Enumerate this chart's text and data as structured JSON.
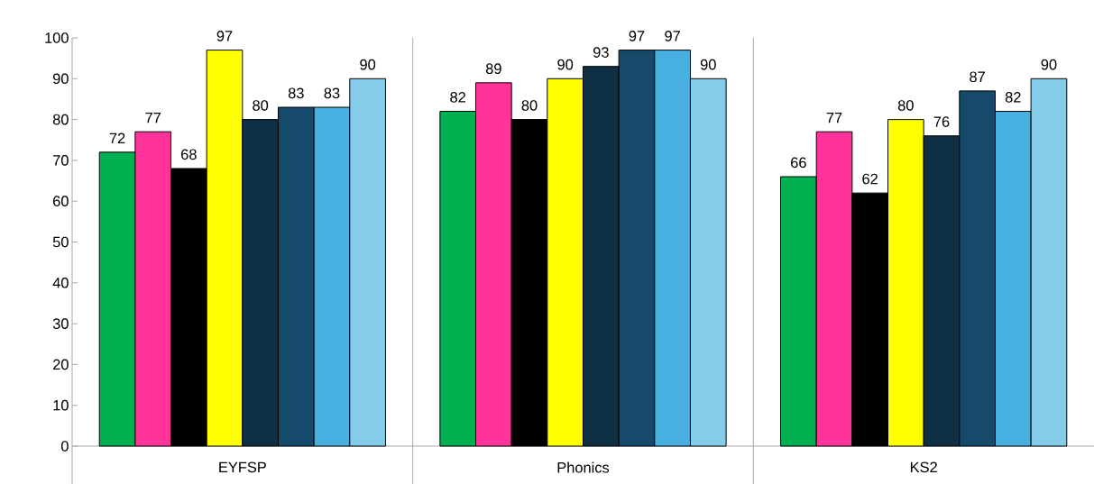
{
  "chart_data": {
    "type": "bar",
    "categories": [
      "EYFSP",
      "Phonics",
      "KS2"
    ],
    "series": [
      {
        "color": "#00b050",
        "values": [
          72,
          82,
          66
        ]
      },
      {
        "color": "#ff3399",
        "values": [
          77,
          89,
          77
        ]
      },
      {
        "color": "#000000",
        "values": [
          68,
          80,
          62
        ]
      },
      {
        "color": "#ffff00",
        "values": [
          97,
          90,
          80
        ]
      },
      {
        "color": "#0e2f44",
        "values": [
          80,
          93,
          76
        ]
      },
      {
        "color": "#154a6a",
        "values": [
          83,
          97,
          87
        ]
      },
      {
        "color": "#47b0e0",
        "values": [
          83,
          97,
          82
        ]
      },
      {
        "color": "#85cbea",
        "values": [
          90,
          90,
          90
        ]
      }
    ],
    "ylim": [
      0,
      100
    ],
    "yticks": [
      0,
      10,
      20,
      30,
      40,
      50,
      60,
      70,
      80,
      90,
      100
    ],
    "data_labels": true,
    "grid": false
  }
}
